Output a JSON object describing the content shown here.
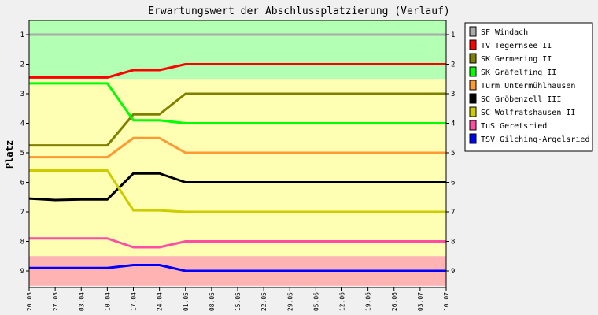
{
  "chart_data": {
    "type": "line",
    "title": "Erwartungswert der Abschlussplatzierung (Verlauf)",
    "ylabel": "Platz",
    "xlabel": "",
    "ylim": [
      1,
      9
    ],
    "y_inverted": true,
    "yticks": [
      "1",
      "2",
      "3",
      "4",
      "5",
      "6",
      "7",
      "8",
      "9"
    ],
    "x": [
      "20.03",
      "27.03",
      "03.04",
      "10.04",
      "17.04",
      "24.04",
      "01.05",
      "08.05",
      "15.05",
      "22.05",
      "29.05",
      "05.06",
      "12.06",
      "19.06",
      "26.06",
      "03.07",
      "10.07"
    ],
    "bands": [
      {
        "from": 0.5,
        "to": 2.5,
        "color": "#b3ffb3"
      },
      {
        "from": 2.5,
        "to": 8.5,
        "color": "#ffffb3"
      },
      {
        "from": 8.5,
        "to": 9.5,
        "color": "#ffb3b3"
      }
    ],
    "series": [
      {
        "name": "SF Windach",
        "color": "#aaaaaa",
        "values": [
          1,
          1,
          1,
          1,
          1,
          1,
          1,
          1,
          1,
          1,
          1,
          1,
          1,
          1,
          1,
          1,
          1
        ]
      },
      {
        "name": "TV Tegernsee II",
        "color": "#ff0000",
        "values": [
          2.45,
          2.45,
          2.45,
          2.45,
          2.2,
          2.2,
          2,
          2,
          2,
          2,
          2,
          2,
          2,
          2,
          2,
          2,
          2
        ]
      },
      {
        "name": "SK Germering II",
        "color": "#808000",
        "values": [
          4.75,
          4.75,
          4.75,
          4.75,
          3.7,
          3.7,
          3,
          3,
          3,
          3,
          3,
          3,
          3,
          3,
          3,
          3,
          3
        ]
      },
      {
        "name": "SK Gräfelfing II",
        "color": "#00ff00",
        "values": [
          2.65,
          2.65,
          2.65,
          2.65,
          3.9,
          3.9,
          4,
          4,
          4,
          4,
          4,
          4,
          4,
          4,
          4,
          4,
          4
        ]
      },
      {
        "name": "Turm Untermühlhausen",
        "color": "#ff9933",
        "values": [
          5.15,
          5.15,
          5.15,
          5.15,
          4.5,
          4.5,
          5,
          5,
          5,
          5,
          5,
          5,
          5,
          5,
          5,
          5,
          5
        ]
      },
      {
        "name": "SC Gröbenzell III",
        "color": "#000000",
        "values": [
          6.55,
          6.6,
          6.58,
          6.58,
          5.7,
          5.7,
          6,
          6,
          6,
          6,
          6,
          6,
          6,
          6,
          6,
          6,
          6
        ]
      },
      {
        "name": "SC Wolfratshausen II",
        "color": "#cccc00",
        "values": [
          5.6,
          5.6,
          5.6,
          5.6,
          6.95,
          6.95,
          7,
          7,
          7,
          7,
          7,
          7,
          7,
          7,
          7,
          7,
          7
        ]
      },
      {
        "name": "TuS Geretsried",
        "color": "#ff4da6",
        "values": [
          7.9,
          7.9,
          7.9,
          7.9,
          8.2,
          8.2,
          8,
          8,
          8,
          8,
          8,
          8,
          8,
          8,
          8,
          8,
          8
        ]
      },
      {
        "name": "TSV Gilching-Argelsried",
        "color": "#0000ff",
        "values": [
          8.9,
          8.9,
          8.9,
          8.9,
          8.8,
          8.8,
          9,
          9,
          9,
          9,
          9,
          9,
          9,
          9,
          9,
          9,
          9
        ]
      }
    ],
    "legend": "right",
    "grid": false
  }
}
